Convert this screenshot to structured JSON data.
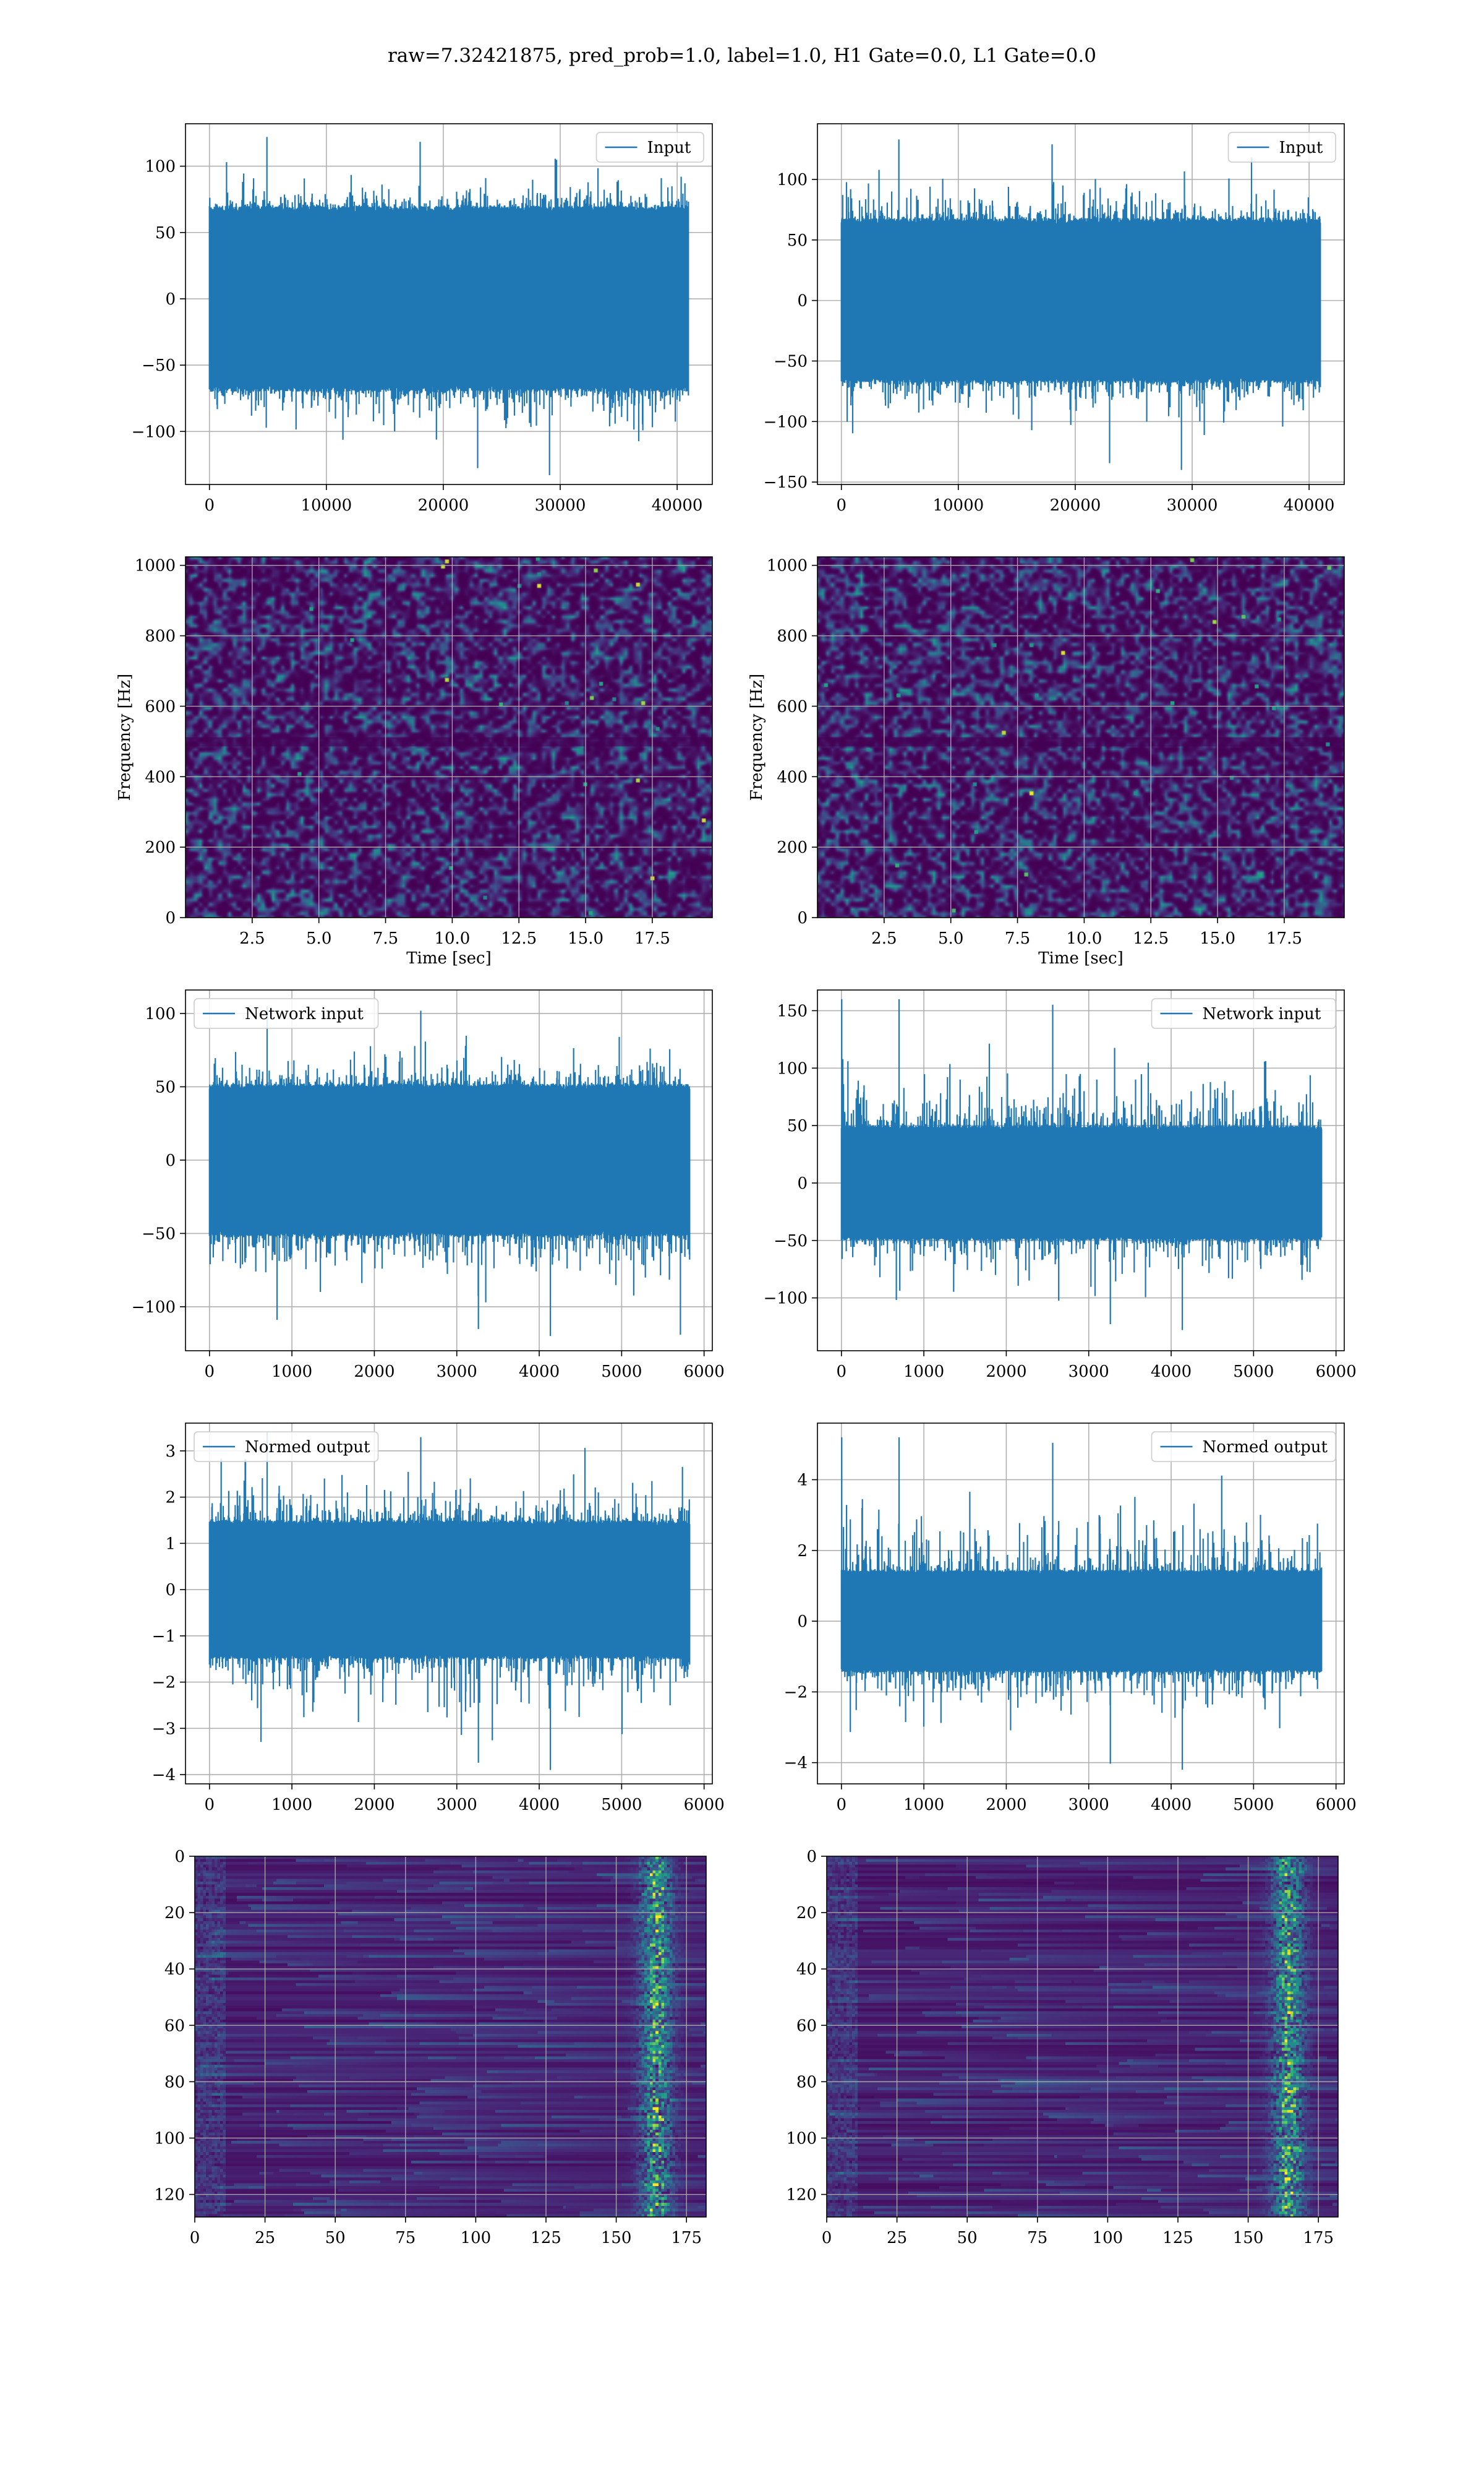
{
  "figure": {
    "title": "raw=7.32421875, pred_prob=1.0, label=1.0, H1 Gate=0.0, L1 Gate=0.0"
  },
  "colors": {
    "line": "#1f77b4",
    "grid": "#b0b0b0",
    "viridis_dark": "#440154",
    "viridis_purple": "#3b0f70",
    "viridis_blue": "#31688e",
    "viridis_teal": "#21918c",
    "viridis_green": "#35b779",
    "viridis_yellow": "#fde725"
  },
  "chart_data": [
    {
      "id": "input-h1",
      "type": "line",
      "series": [
        {
          "name": "Input"
        }
      ],
      "xticks": [
        "0",
        "10000",
        "20000",
        "30000",
        "40000"
      ],
      "xtick_values": [
        0,
        10000,
        20000,
        30000,
        40000
      ],
      "yticks": [
        "−100",
        "−50",
        "0",
        "50",
        "100"
      ],
      "ytick_values": [
        -100,
        -50,
        0,
        50,
        100
      ],
      "xlim": [
        -2048,
        43008
      ],
      "ylim": [
        -140,
        132
      ],
      "n_samples": 40960,
      "band": 70,
      "min": -133,
      "max": 122,
      "legend_position": "upper right",
      "grid": true
    },
    {
      "id": "input-l1",
      "type": "line",
      "series": [
        {
          "name": "Input"
        }
      ],
      "xticks": [
        "0",
        "10000",
        "20000",
        "30000",
        "40000"
      ],
      "xtick_values": [
        0,
        10000,
        20000,
        30000,
        40000
      ],
      "yticks": [
        "−150",
        "−100",
        "−50",
        "0",
        "50",
        "100"
      ],
      "ytick_values": [
        -150,
        -100,
        -50,
        0,
        50,
        100
      ],
      "xlim": [
        -2048,
        43008
      ],
      "ylim": [
        -152,
        146
      ],
      "n_samples": 40960,
      "band": 68,
      "min": -140,
      "max": 133,
      "legend_position": "upper right",
      "grid": true
    },
    {
      "id": "spec-h1",
      "type": "heatmap",
      "xticks": [
        "2.5",
        "5.0",
        "7.5",
        "10.0",
        "12.5",
        "15.0",
        "17.5"
      ],
      "xtick_values": [
        2.5,
        5.0,
        7.5,
        10.0,
        12.5,
        15.0,
        17.5
      ],
      "yticks": [
        "0",
        "200",
        "400",
        "600",
        "800",
        "1000"
      ],
      "ytick_values": [
        0,
        200,
        400,
        600,
        800,
        1000
      ],
      "xlim": [
        0,
        19.75
      ],
      "ylim": [
        0,
        1024
      ],
      "xlabel": "Time [sec]",
      "ylabel": "Frequency [Hz]",
      "grid": true
    },
    {
      "id": "spec-l1",
      "type": "heatmap",
      "xticks": [
        "2.5",
        "5.0",
        "7.5",
        "10.0",
        "12.5",
        "15.0",
        "17.5"
      ],
      "xtick_values": [
        2.5,
        5.0,
        7.5,
        10.0,
        12.5,
        15.0,
        17.5
      ],
      "yticks": [
        "0",
        "200",
        "400",
        "600",
        "800",
        "1000"
      ],
      "ytick_values": [
        0,
        200,
        400,
        600,
        800,
        1000
      ],
      "xlim": [
        0,
        19.75
      ],
      "ylim": [
        0,
        1024
      ],
      "xlabel": "Time [sec]",
      "ylabel": "Frequency [Hz]",
      "grid": true
    },
    {
      "id": "net-h1",
      "type": "line",
      "series": [
        {
          "name": "Network input"
        }
      ],
      "xticks": [
        "0",
        "1000",
        "2000",
        "3000",
        "4000",
        "5000",
        "6000"
      ],
      "xtick_values": [
        0,
        1000,
        2000,
        3000,
        4000,
        5000,
        6000
      ],
      "yticks": [
        "−100",
        "−50",
        "0",
        "50",
        "100"
      ],
      "ytick_values": [
        -100,
        -50,
        0,
        50,
        100
      ],
      "xlim": [
        -291,
        6100
      ],
      "ylim": [
        -130,
        116
      ],
      "n_samples": 5825,
      "band": 52,
      "min": -120,
      "max": 105,
      "legend_position": "upper left",
      "grid": true
    },
    {
      "id": "net-l1",
      "type": "line",
      "series": [
        {
          "name": "Network input"
        }
      ],
      "xticks": [
        "0",
        "1000",
        "2000",
        "3000",
        "4000",
        "5000",
        "6000"
      ],
      "xtick_values": [
        0,
        1000,
        2000,
        3000,
        4000,
        5000,
        6000
      ],
      "yticks": [
        "−100",
        "−50",
        "0",
        "50",
        "100",
        "150"
      ],
      "ytick_values": [
        -100,
        -50,
        0,
        50,
        100,
        150
      ],
      "xlim": [
        -291,
        6100
      ],
      "ylim": [
        -146,
        168
      ],
      "n_samples": 5825,
      "band": 50,
      "min": -128,
      "max": 160,
      "spike": {
        "x": 4,
        "y": 160
      },
      "legend_position": "upper right",
      "grid": true
    },
    {
      "id": "norm-h1",
      "type": "line",
      "series": [
        {
          "name": "Normed output"
        }
      ],
      "xticks": [
        "0",
        "1000",
        "2000",
        "3000",
        "4000",
        "5000",
        "6000"
      ],
      "xtick_values": [
        0,
        1000,
        2000,
        3000,
        4000,
        5000,
        6000
      ],
      "yticks": [
        "−4",
        "−3",
        "−2",
        "−1",
        "0",
        "1",
        "2",
        "3"
      ],
      "ytick_values": [
        -4,
        -3,
        -2,
        -1,
        0,
        1,
        2,
        3
      ],
      "xlim": [
        -291,
        6100
      ],
      "ylim": [
        -4.2,
        3.6
      ],
      "n_samples": 5825,
      "band": 1.5,
      "min": -3.9,
      "max": 3.4,
      "legend_position": "upper left",
      "grid": true
    },
    {
      "id": "norm-l1",
      "type": "line",
      "series": [
        {
          "name": "Normed output"
        }
      ],
      "xticks": [
        "0",
        "1000",
        "2000",
        "3000",
        "4000",
        "5000",
        "6000"
      ],
      "xtick_values": [
        0,
        1000,
        2000,
        3000,
        4000,
        5000,
        6000
      ],
      "yticks": [
        "−4",
        "−2",
        "0",
        "2",
        "4"
      ],
      "ytick_values": [
        -4,
        -2,
        0,
        2,
        4
      ],
      "xlim": [
        -291,
        6100
      ],
      "ylim": [
        -4.6,
        5.6
      ],
      "n_samples": 5825,
      "band": 1.45,
      "min": -4.2,
      "max": 5.2,
      "spike": {
        "x": 4,
        "y": 5.2
      },
      "legend_position": "upper right",
      "grid": true
    },
    {
      "id": "feat-h1",
      "type": "heatmap",
      "xticks": [
        "0",
        "25",
        "50",
        "75",
        "100",
        "125",
        "150",
        "175"
      ],
      "xtick_values": [
        0,
        25,
        50,
        75,
        100,
        125,
        150,
        175
      ],
      "yticks": [
        "0",
        "20",
        "40",
        "60",
        "80",
        "100",
        "120"
      ],
      "ytick_values": [
        0,
        20,
        40,
        60,
        80,
        100,
        120
      ],
      "xlim": [
        0,
        182
      ],
      "ylim": [
        128,
        0
      ],
      "rows": 128,
      "cols": 182,
      "grid": true
    },
    {
      "id": "feat-l1",
      "type": "heatmap",
      "xticks": [
        "0",
        "25",
        "50",
        "75",
        "100",
        "125",
        "150",
        "175"
      ],
      "xtick_values": [
        0,
        25,
        50,
        75,
        100,
        125,
        150,
        175
      ],
      "yticks": [
        "0",
        "20",
        "40",
        "60",
        "80",
        "100",
        "120"
      ],
      "ytick_values": [
        0,
        20,
        40,
        60,
        80,
        100,
        120
      ],
      "xlim": [
        0,
        182
      ],
      "ylim": [
        128,
        0
      ],
      "rows": 128,
      "cols": 182,
      "grid": true
    }
  ]
}
